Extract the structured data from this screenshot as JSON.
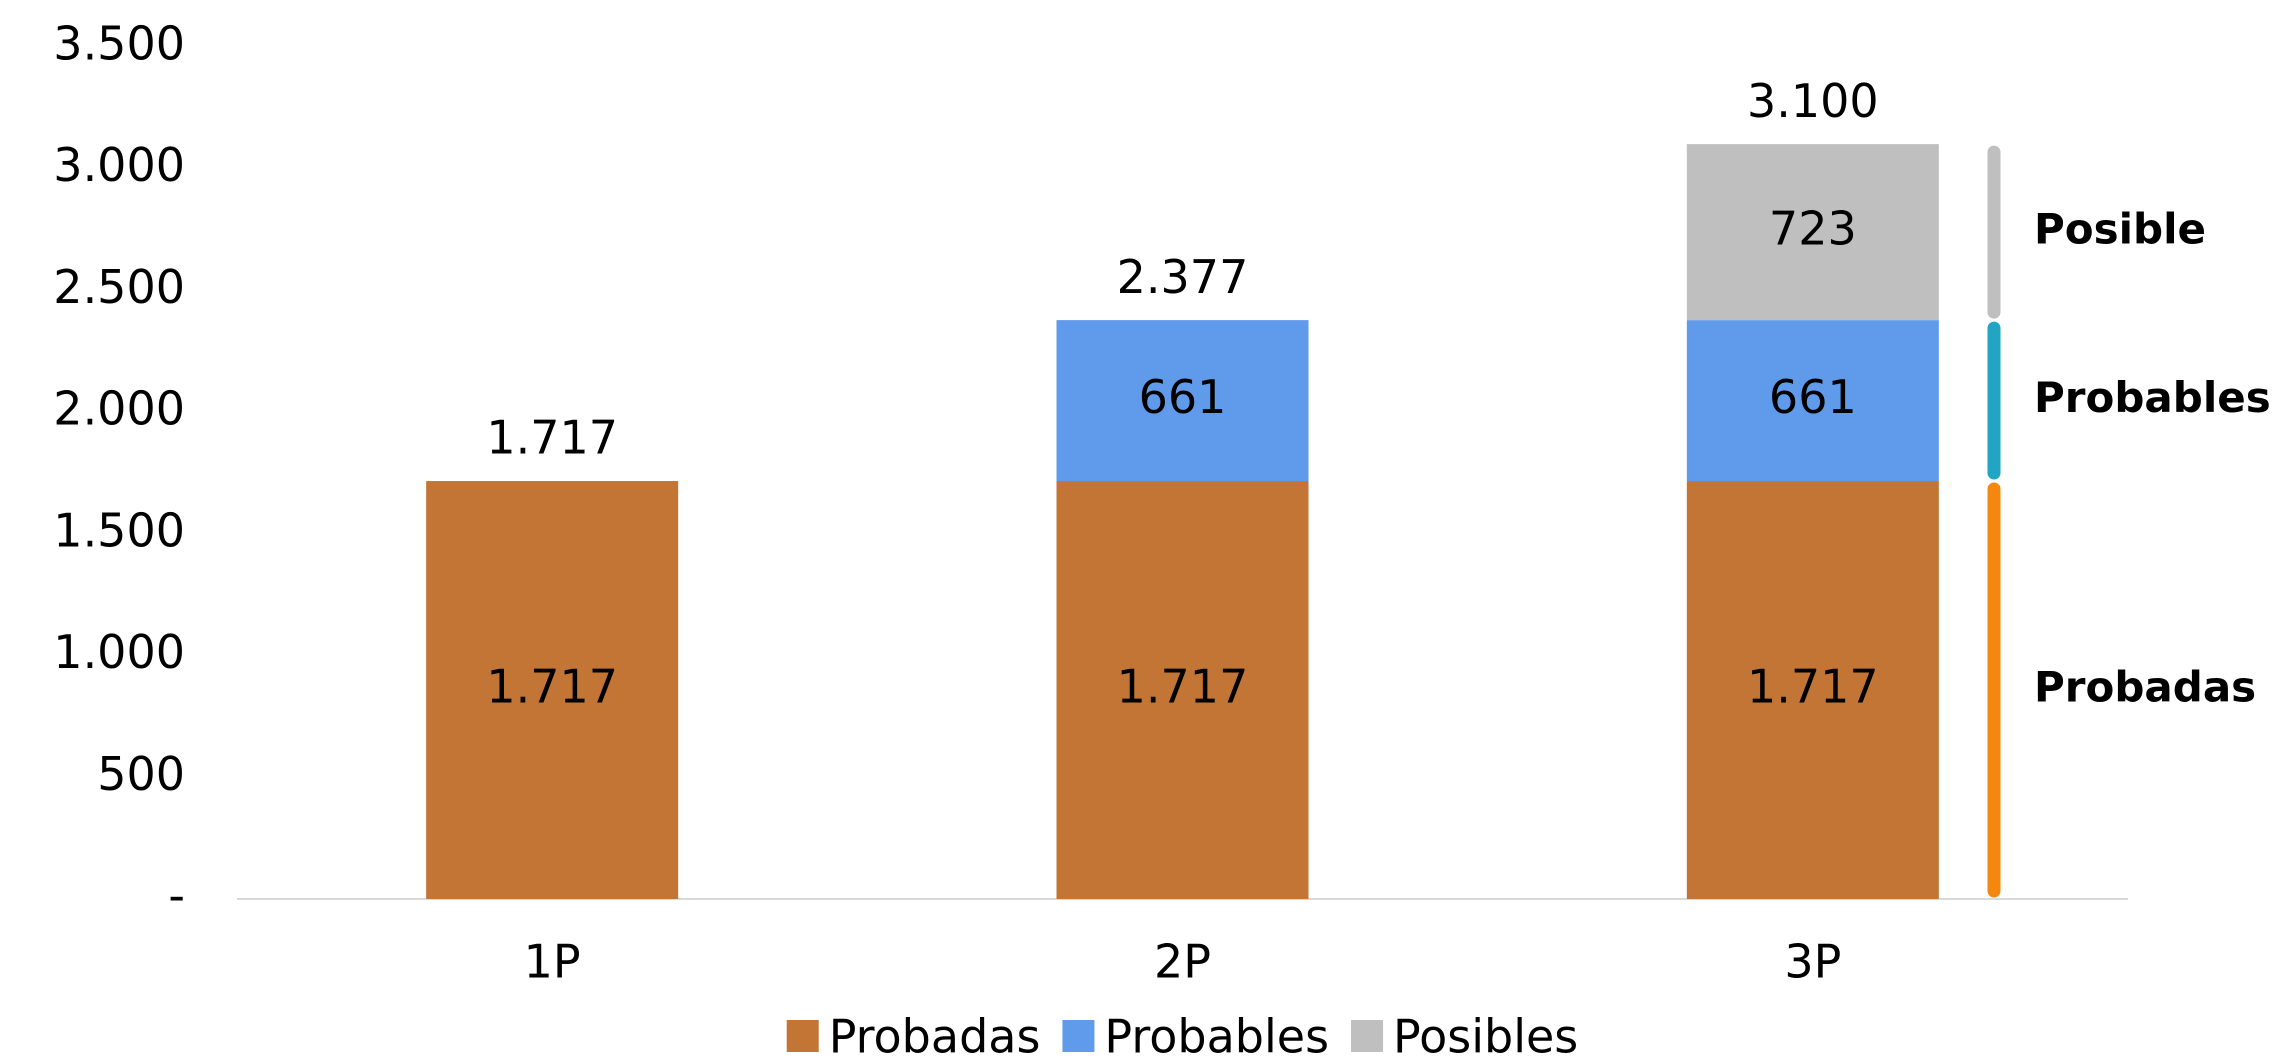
{
  "chart_data": {
    "type": "stacked-bar",
    "categories": [
      "1P",
      "2P",
      "3P"
    ],
    "series": [
      {
        "name": "Probadas",
        "color": "#c27535",
        "values": [
          1717,
          1717,
          1717
        ],
        "value_labels": [
          "1.717",
          "1.717",
          "1.717"
        ]
      },
      {
        "name": "Probables",
        "color": "#5f9aeb",
        "values": [
          null,
          661,
          661
        ]
      },
      {
        "name": "Posibles",
        "color": "#bfbfbf",
        "values": [
          null,
          null,
          723
        ]
      }
    ],
    "totals": {
      "values": [
        1717,
        2377,
        3100
      ],
      "value_labels": [
        "1.717",
        "2.377",
        "3.100"
      ]
    },
    "ylim": [
      0,
      3500
    ],
    "yticks": [
      {
        "value": 0,
        "label": "-"
      },
      500,
      {
        "value": 1000,
        "label": "1.000"
      },
      {
        "value": 1500,
        "label": "1.500"
      },
      {
        "value": 2000,
        "label": "2.000"
      },
      {
        "value": 2500,
        "label": "2.500"
      },
      {
        "value": 3000,
        "label": "3.000"
      },
      {
        "value": 3500,
        "label": "3.500"
      }
    ],
    "grid": false,
    "legend": "bottom",
    "brackets": [
      {
        "label": "Probadas",
        "color": "#f5870f"
      },
      {
        "label": "Probables",
        "color": "#21a5c3"
      },
      {
        "label": "Posible",
        "color": "#bfbfbf"
      }
    ]
  }
}
